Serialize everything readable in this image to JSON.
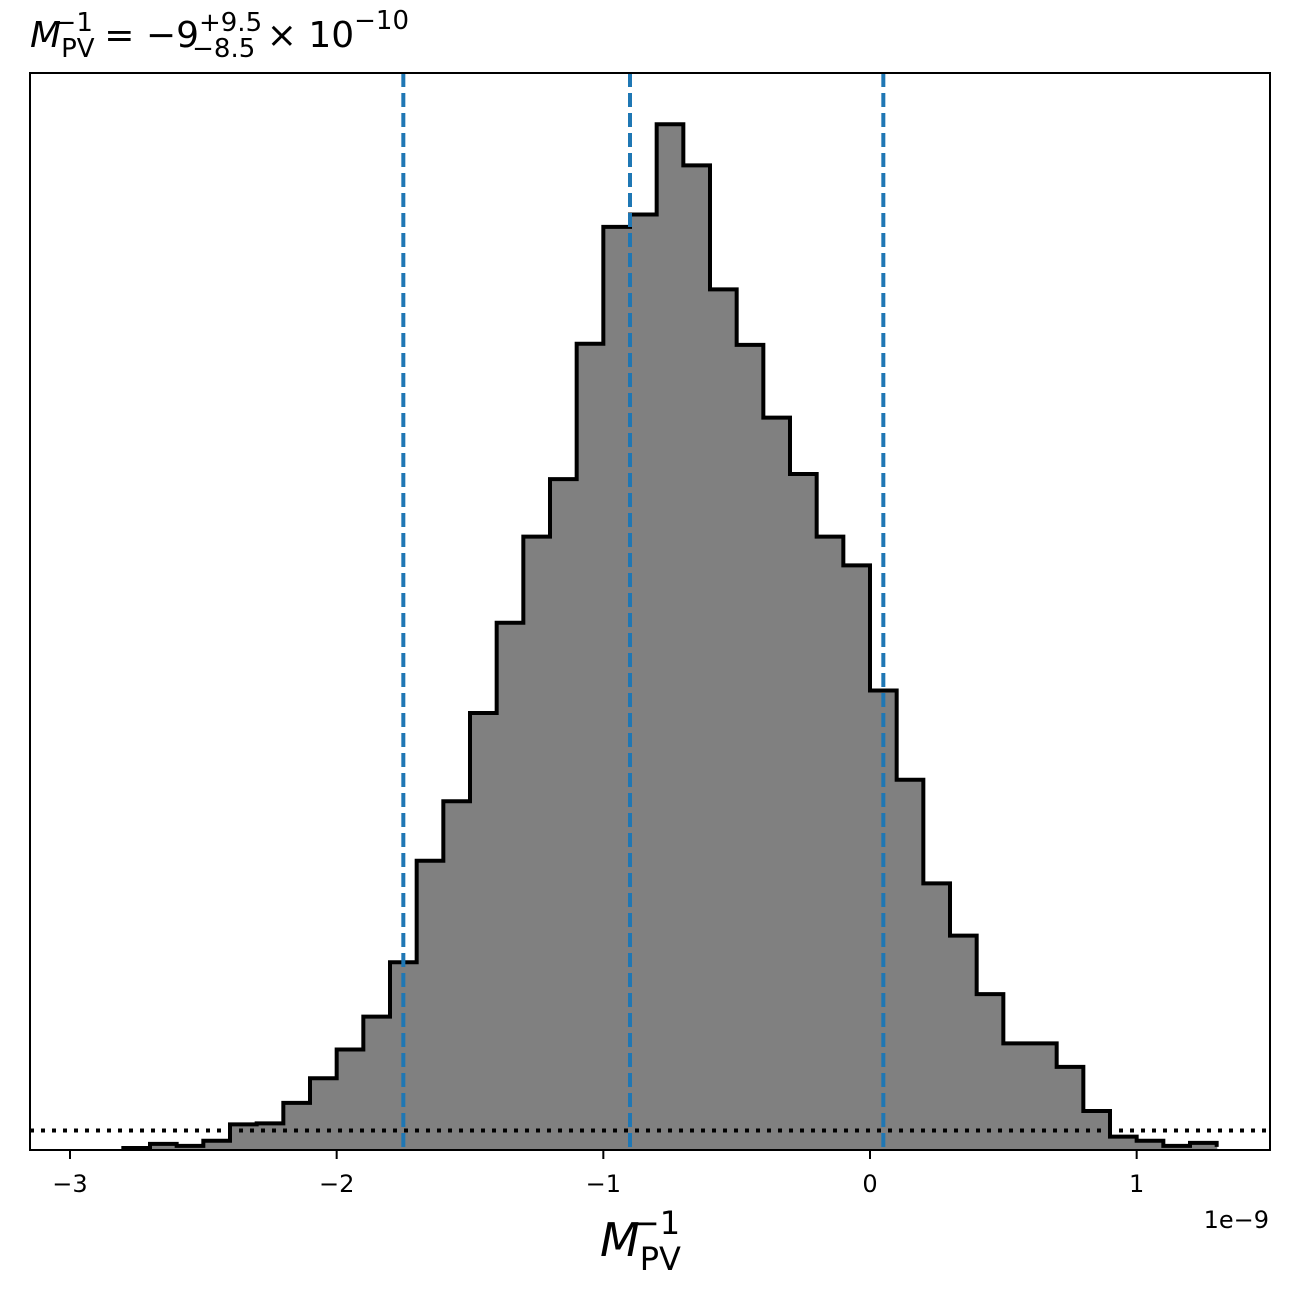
{
  "chart_data": {
    "type": "bar",
    "title": {
      "symbol": "M",
      "subscript": "PV",
      "superscript": "−1",
      "equals": " = −9",
      "upper_err": "+9.5",
      "lower_err": "−8.5",
      "times": " × 10",
      "exponent": "−10"
    },
    "xlabel": {
      "symbol": "M",
      "subscript": "PV",
      "superscript": "−1"
    },
    "ylabel": "",
    "offset_label": "1e−9",
    "xlim": [
      -3.15,
      1.5
    ],
    "ylim": [
      0,
      1.05
    ],
    "xticks": [
      -3,
      -2,
      -1,
      0,
      1
    ],
    "xtick_labels": [
      "−3",
      "−2",
      "−1",
      "0",
      "1"
    ],
    "grid": false,
    "bin_edges": [
      -2.8,
      -2.7,
      -2.6,
      -2.5,
      -2.4,
      -2.3,
      -2.2,
      -2.1,
      -2.0,
      -1.9,
      -1.8,
      -1.7,
      -1.6,
      -1.5,
      -1.4,
      -1.3,
      -1.2,
      -1.1,
      -1.0,
      -0.9,
      -0.8,
      -0.7,
      -0.6,
      -0.5,
      -0.4,
      -0.3,
      -0.2,
      -0.1,
      0.0,
      0.1,
      0.2,
      0.3,
      0.4,
      0.5,
      0.6,
      0.7,
      0.8,
      0.9,
      1.0,
      1.1,
      1.2,
      1.3
    ],
    "values": [
      0.002,
      0.006,
      0.004,
      0.009,
      0.025,
      0.026,
      0.046,
      0.07,
      0.098,
      0.13,
      0.183,
      0.282,
      0.34,
      0.426,
      0.514,
      0.598,
      0.654,
      0.786,
      0.9,
      0.912,
      1.0,
      0.96,
      0.839,
      0.785,
      0.714,
      0.659,
      0.598,
      0.57,
      0.448,
      0.361,
      0.26,
      0.209,
      0.152,
      0.104,
      0.104,
      0.081,
      0.038,
      0.013,
      0.009,
      0.004,
      0.007,
      0.003
    ],
    "fill_color": "#808080",
    "edge_color": "#000000",
    "vertical_lines": {
      "values": [
        -1.75,
        -0.9,
        0.05
      ],
      "color": "#1f77b4",
      "style": "dashed"
    },
    "horizontal_line": {
      "value": 0.019,
      "color": "#000000",
      "style": "dotted"
    }
  }
}
